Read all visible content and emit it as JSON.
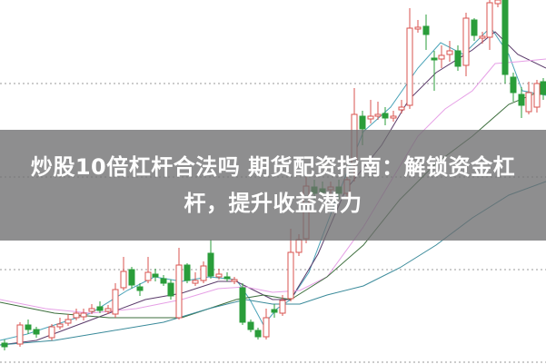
{
  "article": {
    "title_line1": "炒股10倍杠杆合法吗 期货配资指南：解锁资金杠",
    "title_line2": "杆，提升收益潜力"
  },
  "colors": {
    "up_candle": "#d9534f",
    "down_candle": "#2a9d3a",
    "banner": "#6e6e70",
    "title_text": "#ffffff"
  }
}
